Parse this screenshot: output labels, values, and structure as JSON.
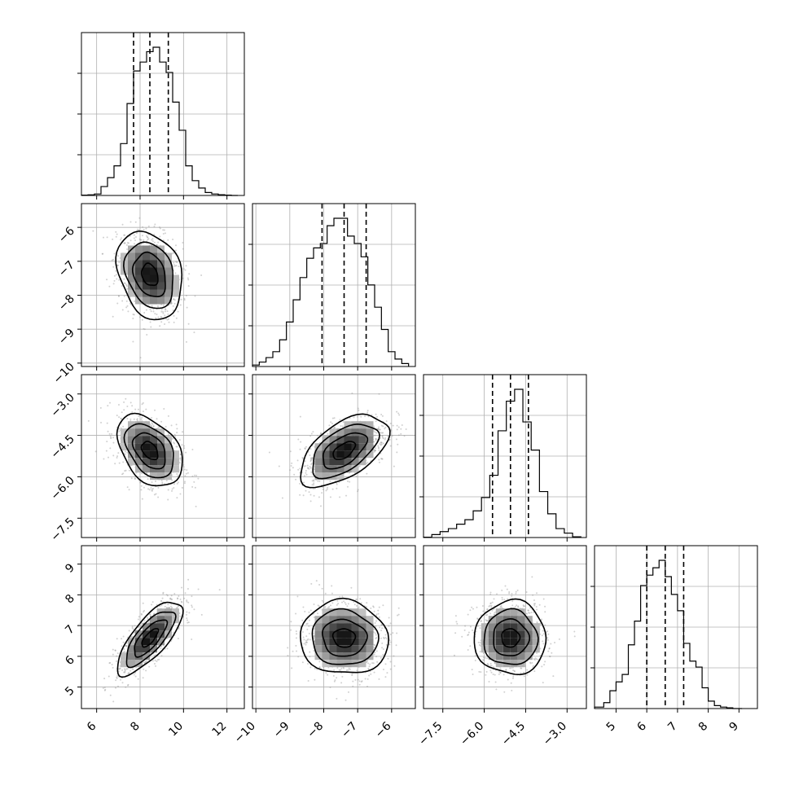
{
  "chart_data": {
    "type": "corner",
    "title": "",
    "grid": true,
    "parameters": [
      {
        "index": 0,
        "range": [
          5.3,
          12.8
        ],
        "ticks": [
          6,
          8,
          10,
          12
        ],
        "tick_labels": [
          "6",
          "8",
          "10",
          "12"
        ],
        "quantiles": [
          7.7,
          8.45,
          9.3
        ],
        "histogram": {
          "edges": [
            5.3,
            5.6,
            5.9,
            6.2,
            6.5,
            6.8,
            7.1,
            7.4,
            7.7,
            8.0,
            8.3,
            8.6,
            8.9,
            9.2,
            9.5,
            9.8,
            10.1,
            10.4,
            10.7,
            11.0,
            11.3,
            11.6,
            11.9,
            12.2,
            12.5
          ],
          "counts": [
            0.002,
            0.004,
            0.01,
            0.06,
            0.12,
            0.2,
            0.35,
            0.62,
            0.84,
            0.9,
            0.97,
            1.0,
            0.9,
            0.83,
            0.63,
            0.44,
            0.2,
            0.1,
            0.05,
            0.02,
            0.01,
            0.005,
            0.002,
            0.0
          ]
        }
      },
      {
        "index": 1,
        "range": [
          -10.1,
          -5.3
        ],
        "ticks": [
          -10,
          -9,
          -8,
          -7,
          -6
        ],
        "tick_labels": [
          "−10",
          "−9",
          "−8",
          "−7",
          "−6"
        ],
        "quantiles": [
          -8.05,
          -7.4,
          -6.75
        ],
        "histogram": {
          "edges": [
            -10.1,
            -9.9,
            -9.7,
            -9.5,
            -9.3,
            -9.1,
            -8.9,
            -8.7,
            -8.5,
            -8.3,
            -8.1,
            -7.9,
            -7.7,
            -7.5,
            -7.3,
            -7.1,
            -6.9,
            -6.7,
            -6.5,
            -6.3,
            -6.1,
            -5.9,
            -5.7,
            -5.5
          ],
          "counts": [
            0.01,
            0.03,
            0.06,
            0.1,
            0.18,
            0.3,
            0.45,
            0.6,
            0.73,
            0.8,
            0.83,
            0.95,
            1.0,
            1.0,
            0.88,
            0.83,
            0.74,
            0.55,
            0.4,
            0.25,
            0.1,
            0.05,
            0.02
          ]
        }
      },
      {
        "index": 2,
        "range": [
          -8.2,
          -2.3
        ],
        "ticks": [
          -7.5,
          -6.0,
          -4.5,
          -3.0
        ],
        "tick_labels": [
          "−7.5",
          "−6.0",
          "−4.5",
          "−3.0"
        ],
        "quantiles": [
          -5.7,
          -5.05,
          -4.4
        ],
        "histogram": {
          "edges": [
            -8.2,
            -7.9,
            -7.6,
            -7.3,
            -7.0,
            -6.7,
            -6.4,
            -6.1,
            -5.8,
            -5.5,
            -5.2,
            -4.9,
            -4.6,
            -4.3,
            -4.0,
            -3.7,
            -3.4,
            -3.1,
            -2.8,
            -2.5
          ],
          "counts": [
            0.002,
            0.02,
            0.04,
            0.06,
            0.09,
            0.12,
            0.18,
            0.27,
            0.42,
            0.72,
            0.92,
            1.0,
            0.78,
            0.59,
            0.31,
            0.16,
            0.06,
            0.03,
            0.005
          ]
        }
      },
      {
        "index": 3,
        "range": [
          4.3,
          9.6
        ],
        "ticks": [
          5,
          6,
          7,
          8,
          9
        ],
        "tick_labels": [
          "5",
          "6",
          "7",
          "8",
          "9"
        ],
        "quantiles": [
          6.0,
          6.6,
          7.2
        ],
        "histogram": {
          "edges": [
            4.3,
            4.6,
            4.8,
            5.0,
            5.2,
            5.4,
            5.6,
            5.8,
            6.0,
            6.2,
            6.4,
            6.6,
            6.8,
            7.0,
            7.2,
            7.4,
            7.6,
            7.8,
            8.0,
            8.2,
            8.4,
            8.6,
            8.8,
            9.1
          ],
          "counts": [
            0.01,
            0.04,
            0.12,
            0.18,
            0.23,
            0.43,
            0.59,
            0.83,
            0.9,
            0.95,
            1.0,
            0.89,
            0.77,
            0.66,
            0.44,
            0.32,
            0.28,
            0.14,
            0.05,
            0.02,
            0.01,
            0.005,
            0.0
          ]
        }
      }
    ],
    "pairs": [
      {
        "row": 1,
        "col": 0,
        "mean": [
          8.45,
          -7.4
        ],
        "sd": [
          0.75,
          0.65
        ],
        "corr": -0.25,
        "bins": 8
      },
      {
        "row": 2,
        "col": 0,
        "mean": [
          8.45,
          -5.05
        ],
        "sd": [
          0.75,
          0.65
        ],
        "corr": -0.4,
        "bins": 8
      },
      {
        "row": 2,
        "col": 1,
        "mean": [
          -7.4,
          -5.05
        ],
        "sd": [
          0.65,
          0.65
        ],
        "corr": 0.55,
        "bins": 8
      },
      {
        "row": 3,
        "col": 0,
        "mean": [
          8.45,
          6.6
        ],
        "sd": [
          0.75,
          0.6
        ],
        "corr": 0.75,
        "bins": 8
      },
      {
        "row": 3,
        "col": 1,
        "mean": [
          -7.4,
          6.6
        ],
        "sd": [
          0.65,
          0.6
        ],
        "corr": -0.05,
        "bins": 8
      },
      {
        "row": 3,
        "col": 2,
        "mean": [
          -5.05,
          6.6
        ],
        "sd": [
          0.65,
          0.6
        ],
        "corr": 0.0,
        "bins": 8
      }
    ],
    "contour_levels_sigma": [
      0.5,
      1.0,
      1.5,
      2.0
    ],
    "colors": {
      "hist": "#000000",
      "points": "#9a9a9a",
      "density": "#000000",
      "grid": "#b0b0b0"
    }
  }
}
